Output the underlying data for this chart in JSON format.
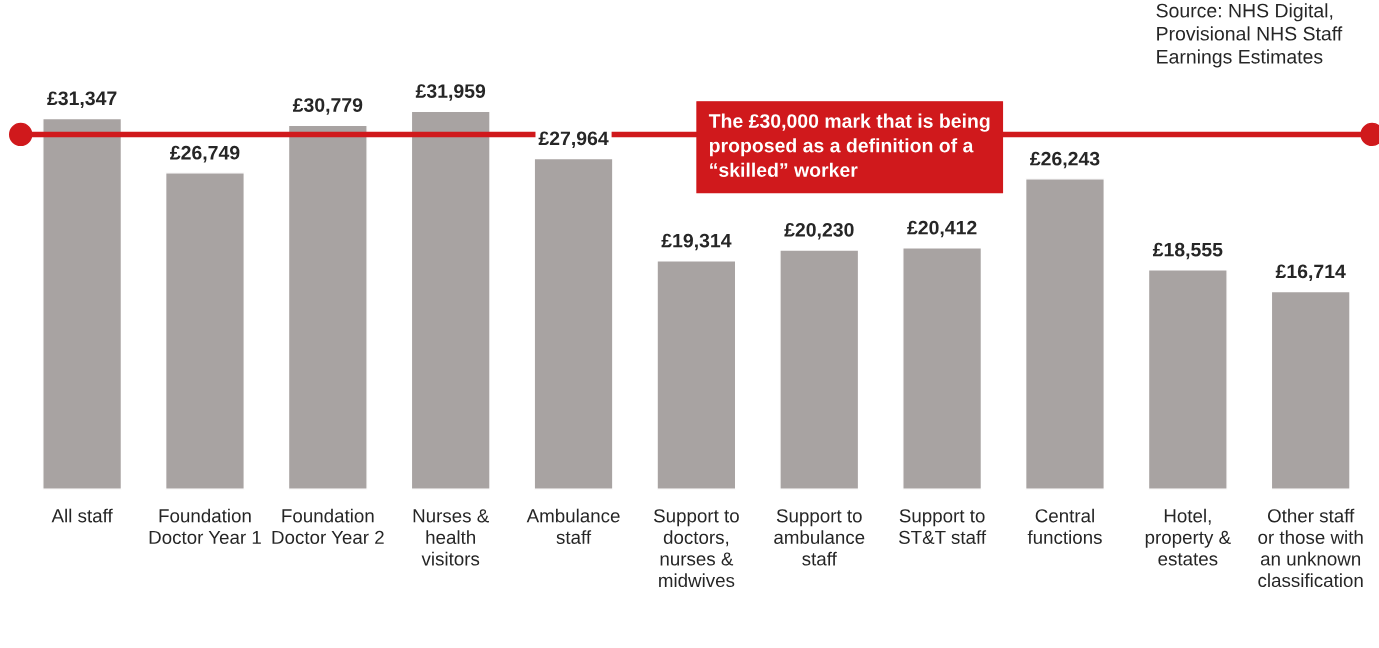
{
  "chart_data": {
    "type": "bar",
    "categories": [
      "All staff",
      "Foundation Doctor Year 1",
      "Foundation Doctor Year 2",
      "Nurses & health visitors",
      "Ambulance staff",
      "Support to doctors, nurses & midwives",
      "Support to ambulance staff",
      "Support to ST&T staff",
      "Central functions",
      "Hotel, property & estates",
      "Other staff or those with an unknown classification"
    ],
    "values": [
      31347,
      26749,
      30779,
      31959,
      27964,
      19314,
      20230,
      20412,
      26243,
      18555,
      16714
    ],
    "value_labels": [
      "£31,347",
      "£26,749",
      "£30,779",
      "£31,959",
      "£27,964",
      "£19,314",
      "£20,230",
      "£20,412",
      "£26,243",
      "£18,555",
      "£16,714"
    ],
    "color": "#a8a3a2",
    "ref_lines": [
      {
        "axis": "y",
        "value": 30000,
        "label": "The £30,000 mark that is being proposed as a definition of a “skilled” worker",
        "color": "#d0191c"
      }
    ],
    "annotations": [
      "Source: NHS Digital, Provisional NHS Staff Earnings Estimates"
    ],
    "tick_labels": "x",
    "grid": false,
    "legend": false
  }
}
